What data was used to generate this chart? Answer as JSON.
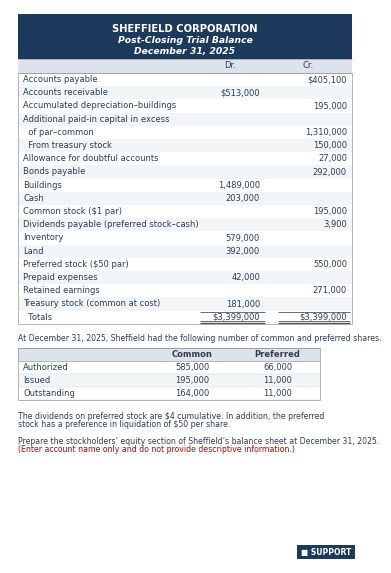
{
  "title_line1": "SHEFFIELD CORPORATION",
  "title_line2": "Post-Closing Trial Balance",
  "title_line3": "December 31, 2025",
  "header_bg": "#1b3a5c",
  "header_text_color": "#ffffff",
  "col_header_bg": "#dce3ea",
  "table_bg": "#ffffff",
  "row_bg_alt": "#f2f5f8",
  "text_color": "#2c3e50",
  "rows": [
    {
      "account": "Accounts payable",
      "dr": "",
      "cr": "$405,100"
    },
    {
      "account": "Accounts receivable",
      "dr": "$513,000",
      "cr": ""
    },
    {
      "account": "Accumulated depreciation–buildings",
      "dr": "",
      "cr": "195,000"
    },
    {
      "account": "Additional paid-in capital in excess",
      "dr": "",
      "cr": ""
    },
    {
      "account": "  of par–common",
      "dr": "",
      "cr": "1,310,000"
    },
    {
      "account": "  From treasury stock",
      "dr": "",
      "cr": "150,000"
    },
    {
      "account": "Allowance for doubtful accounts",
      "dr": "",
      "cr": "27,000"
    },
    {
      "account": "Bonds payable",
      "dr": "",
      "cr": "292,000"
    },
    {
      "account": "Buildings",
      "dr": "1,489,000",
      "cr": ""
    },
    {
      "account": "Cash",
      "dr": "203,000",
      "cr": ""
    },
    {
      "account": "Common stock ($1 par)",
      "dr": "",
      "cr": "195,000"
    },
    {
      "account": "Dividends payable (preferred stock–cash)",
      "dr": "",
      "cr": "3,900"
    },
    {
      "account": "Inventory",
      "dr": "579,000",
      "cr": ""
    },
    {
      "account": "Land",
      "dr": "392,000",
      "cr": ""
    },
    {
      "account": "Preferred stock ($50 par)",
      "dr": "",
      "cr": "550,000"
    },
    {
      "account": "Prepaid expenses",
      "dr": "42,000",
      "cr": ""
    },
    {
      "account": "Retained earnings",
      "dr": "",
      "cr": "271,000"
    },
    {
      "account": "Treasury stock (common at cost)",
      "dr": "181,000",
      "cr": ""
    },
    {
      "account": "  Totals",
      "dr": "$3,399,000",
      "cr": "$3,399,000",
      "totals": true
    }
  ],
  "shares_text": "At December 31, 2025, Sheffield had the following number of common and preferred shares.",
  "shares_header": [
    "",
    "Common",
    "Preferred"
  ],
  "shares_rows": [
    [
      "Authorized",
      "585,000",
      "66,000"
    ],
    [
      "Issued",
      "195,000",
      "11,000"
    ],
    [
      "Outstanding",
      "164,000",
      "11,000"
    ]
  ],
  "footnote1": "The dividends on preferred stock are $4 cumulative. In addition, the preferred stock has a preference in liquidation of $50 per share.",
  "footnote2_normal": "Prepare the stockholders’ equity section of Sheffield’s balance sheet at December 31, 2025.",
  "footnote2_red": "(Enter account name only and do not provide descriptive information.)",
  "support_label": "SUPPORT",
  "support_bg": "#1b3a5c",
  "support_text_color": "#ffffff",
  "fs_title": 7.2,
  "fs_body": 6.0,
  "fs_small": 5.6
}
